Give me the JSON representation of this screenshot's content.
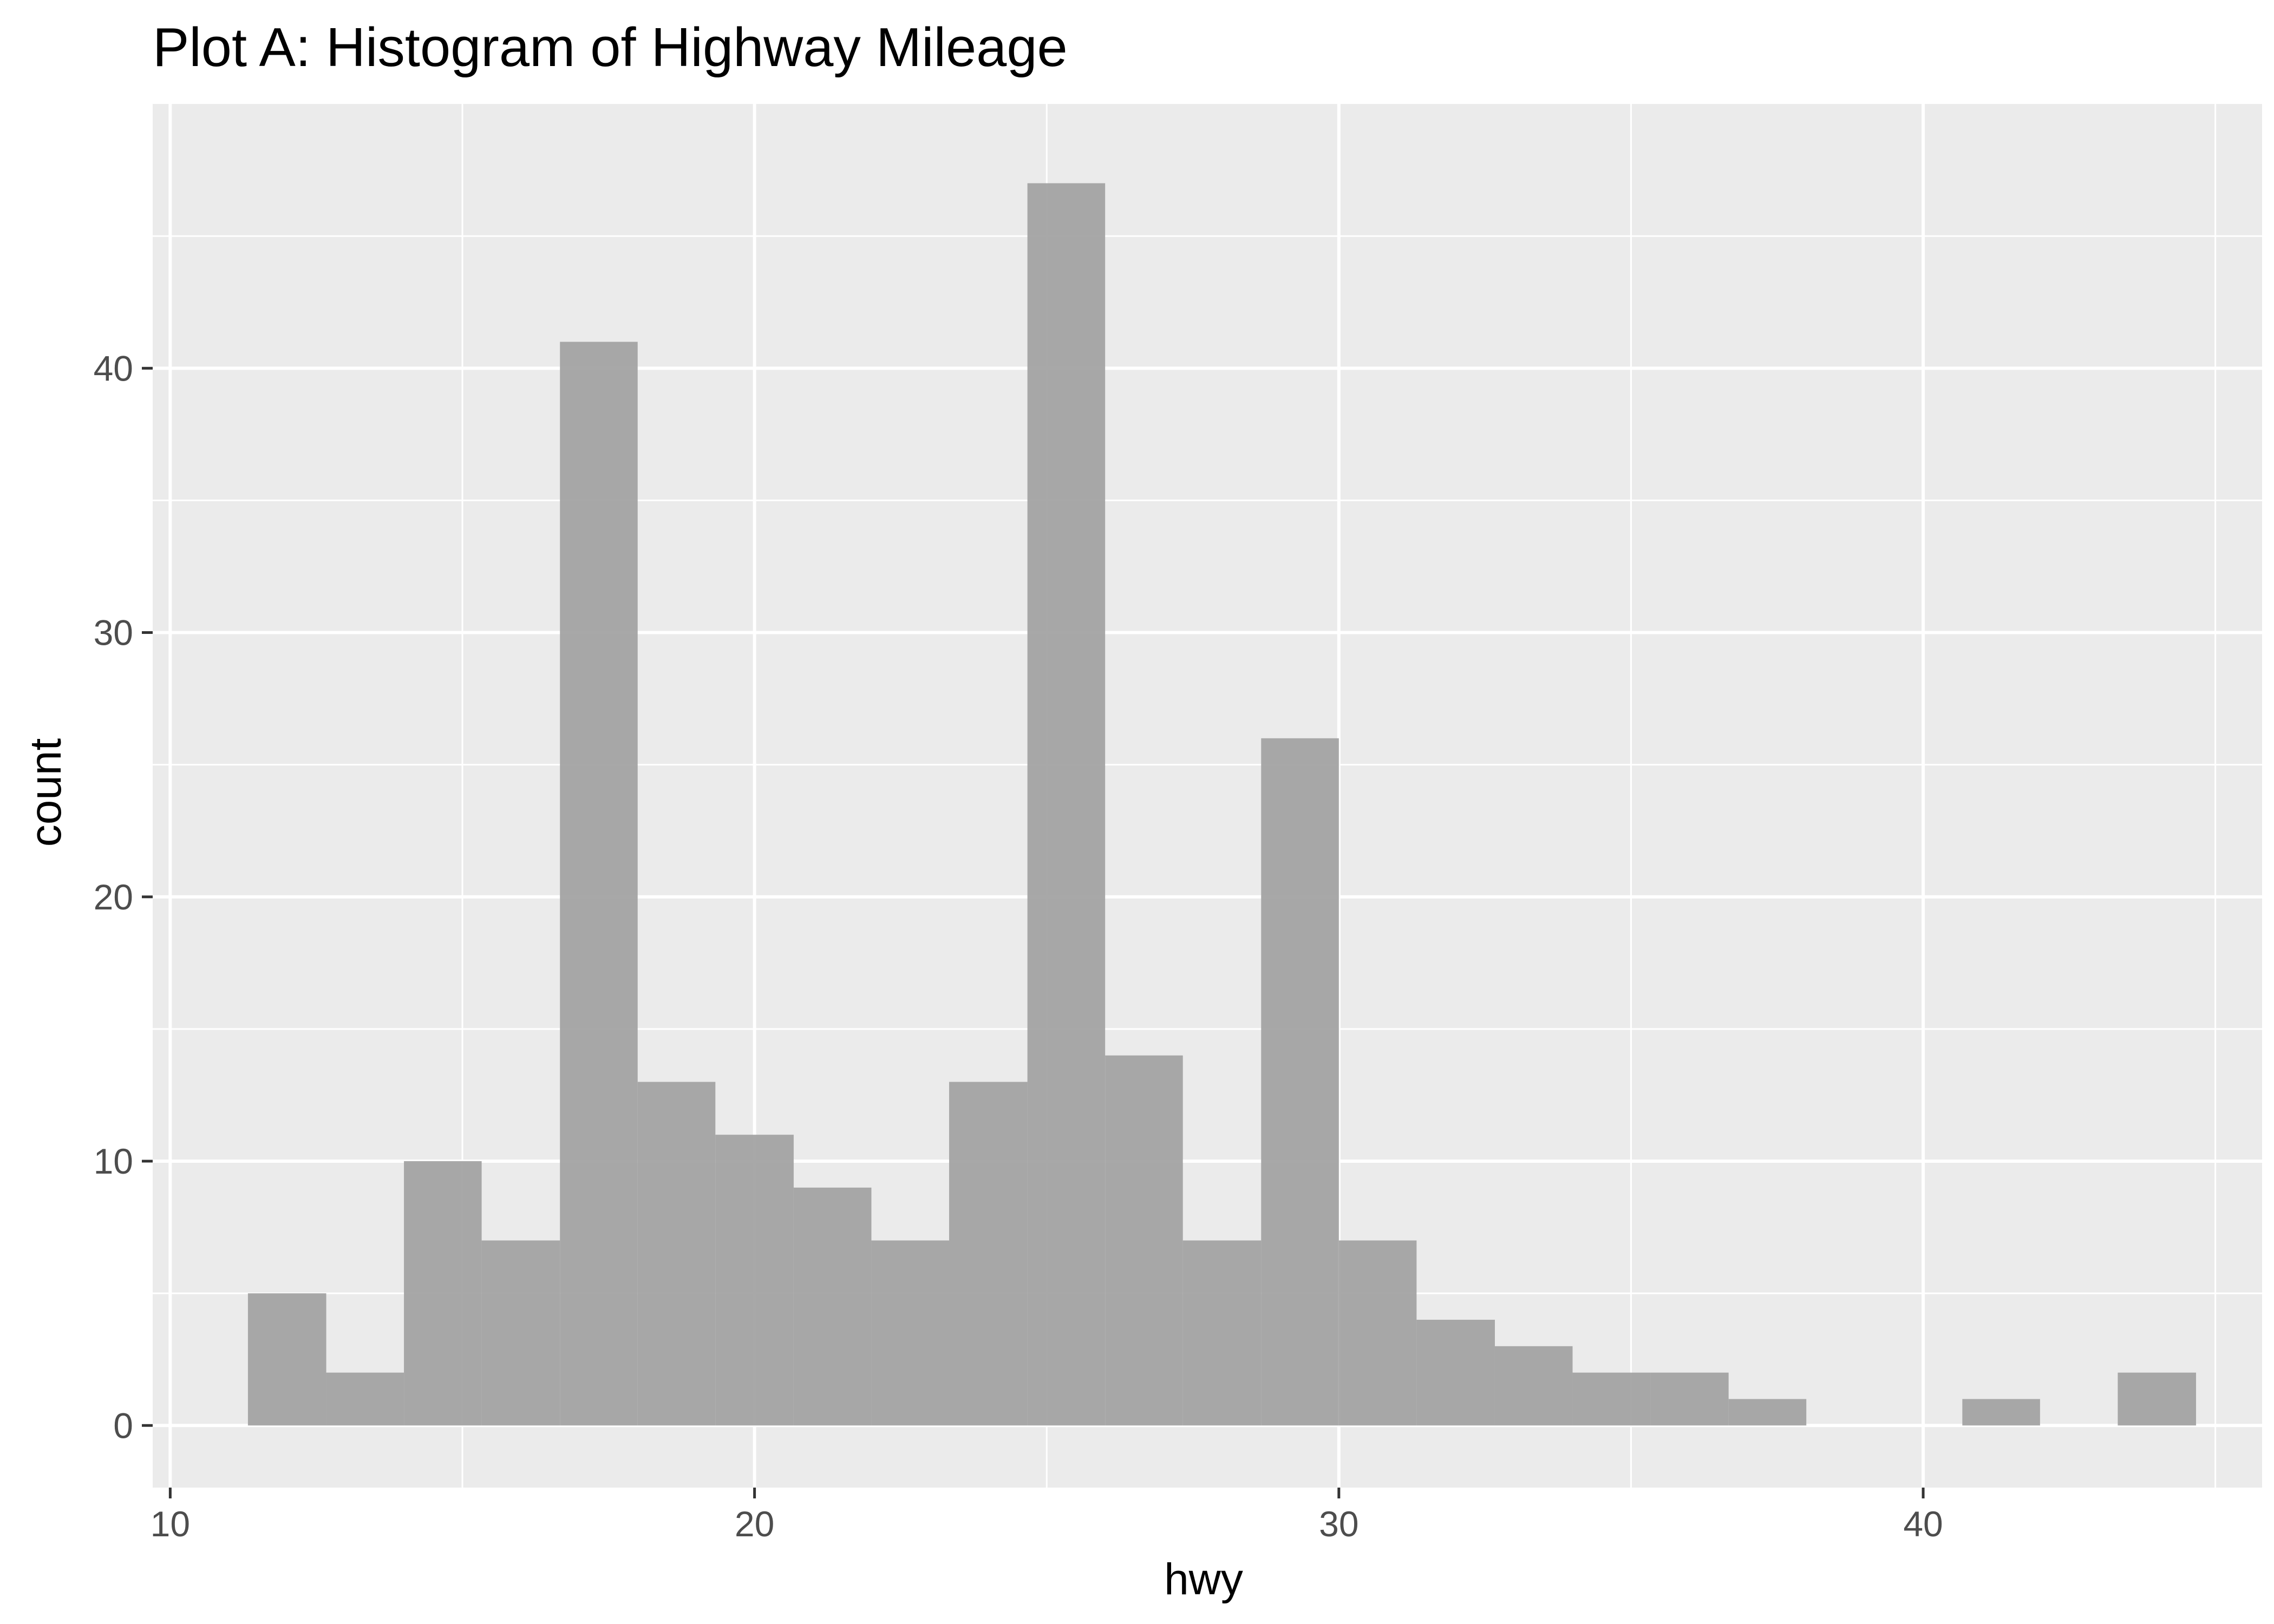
{
  "chart_data": {
    "type": "bar",
    "title": "Plot A: Histogram of Highway Mileage",
    "xlabel": "hwy",
    "ylabel": "count",
    "xlim": [
      9.7,
      45.8
    ],
    "ylim": [
      -2.35,
      50.0
    ],
    "xticks": [
      10,
      20,
      30,
      40
    ],
    "yticks": [
      0,
      10,
      20,
      30,
      40
    ],
    "grid": true,
    "bar_color": "#a3a3a3",
    "panel_color": "#ebebeb",
    "grid_color": "#ffffff",
    "bin_width": 1.333,
    "bins": [
      {
        "x0": 11.33,
        "x1": 12.67,
        "count": 5
      },
      {
        "x0": 12.67,
        "x1": 14.0,
        "count": 2
      },
      {
        "x0": 14.0,
        "x1": 15.33,
        "count": 10
      },
      {
        "x0": 15.33,
        "x1": 16.67,
        "count": 7
      },
      {
        "x0": 16.67,
        "x1": 18.0,
        "count": 41
      },
      {
        "x0": 18.0,
        "x1": 19.33,
        "count": 13
      },
      {
        "x0": 19.33,
        "x1": 20.67,
        "count": 11
      },
      {
        "x0": 20.67,
        "x1": 22.0,
        "count": 9
      },
      {
        "x0": 22.0,
        "x1": 23.33,
        "count": 7
      },
      {
        "x0": 23.33,
        "x1": 24.67,
        "count": 13
      },
      {
        "x0": 24.67,
        "x1": 26.0,
        "count": 47
      },
      {
        "x0": 26.0,
        "x1": 27.33,
        "count": 14
      },
      {
        "x0": 27.33,
        "x1": 28.67,
        "count": 7
      },
      {
        "x0": 28.67,
        "x1": 30.0,
        "count": 26
      },
      {
        "x0": 30.0,
        "x1": 31.33,
        "count": 7
      },
      {
        "x0": 31.33,
        "x1": 32.67,
        "count": 4
      },
      {
        "x0": 32.67,
        "x1": 34.0,
        "count": 3
      },
      {
        "x0": 34.0,
        "x1": 35.33,
        "count": 2
      },
      {
        "x0": 35.33,
        "x1": 36.67,
        "count": 2
      },
      {
        "x0": 36.67,
        "x1": 38.0,
        "count": 1
      },
      {
        "x0": 38.0,
        "x1": 39.33,
        "count": 0
      },
      {
        "x0": 39.33,
        "x1": 40.67,
        "count": 0
      },
      {
        "x0": 40.67,
        "x1": 42.0,
        "count": 1
      },
      {
        "x0": 42.0,
        "x1": 43.33,
        "count": 0
      },
      {
        "x0": 43.33,
        "x1": 44.67,
        "count": 2
      }
    ]
  }
}
